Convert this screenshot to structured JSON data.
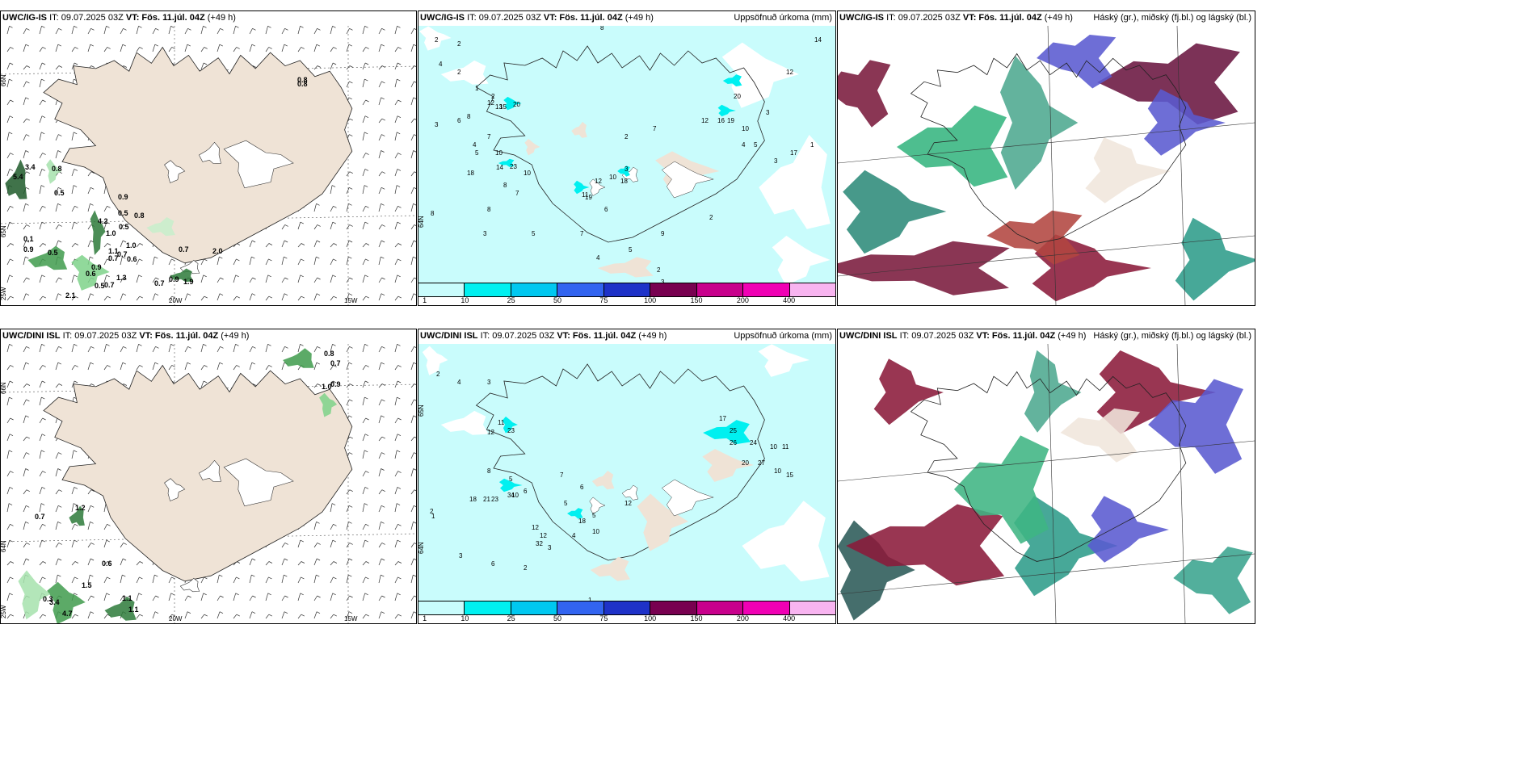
{
  "panels": [
    {
      "id": "p1",
      "model": "UWC/IG-IS",
      "it": "IT: 09.07.2025 03Z",
      "vt_label": "VT:",
      "vt": "Fös. 11.júl. 04Z",
      "lead": "(+49 h)",
      "right_title": ""
    },
    {
      "id": "p2",
      "model": "UWC/IG-IS",
      "it": "IT: 09.07.2025 03Z",
      "vt_label": "VT:",
      "vt": "Fös. 11.júl. 04Z",
      "lead": "(+49 h)",
      "right_title": "Uppsöfnuð úrkoma (mm)"
    },
    {
      "id": "p3",
      "model": "UWC/IG-IS",
      "it": "IT: 09.07.2025 03Z",
      "vt_label": "VT:",
      "vt": "Fös. 11.júl. 04Z",
      "lead": "(+49 h)",
      "right_title": "Háský (gr.), miðský (fj.bl.) og lágský (bl.)"
    },
    {
      "id": "p4",
      "model": "UWC/DINI ISL",
      "it": "IT: 09.07.2025 03Z",
      "vt_label": "VT:",
      "vt": "Fös. 11.júl. 04Z",
      "lead": "(+49 h)",
      "right_title": ""
    },
    {
      "id": "p5",
      "model": "UWC/DINI ISL",
      "it": "IT: 09.07.2025 03Z",
      "vt_label": "VT:",
      "vt": "Fös. 11.júl. 04Z",
      "lead": "(+49 h)",
      "right_title": "Uppsöfnuð úrkoma (mm)"
    },
    {
      "id": "p6",
      "model": "UWC/DINI ISL",
      "it": "IT: 09.07.2025 03Z",
      "vt_label": "VT:",
      "vt": "Fös. 11.júl. 04Z",
      "lead": "(+49 h)",
      "right_title": "Háský (gr.), miðský (fj.bl.) og lágský (bl.)"
    }
  ],
  "colorbar": {
    "labels": [
      "1",
      "10",
      "25",
      "50",
      "75",
      "100",
      "150",
      "200",
      "400"
    ],
    "colors": [
      "#c9fcfc",
      "#00f0f0",
      "#00c8f0",
      "#3264f0",
      "#1e32c8",
      "#780050",
      "#c8008c",
      "#f000b4",
      "#f8b4f0"
    ]
  },
  "axis_labels": {
    "lat66": "66N",
    "lat65": "65N",
    "lat64": "64N",
    "lon25": "25W",
    "lon20": "20W",
    "lon15": "15W"
  },
  "p1_values": [
    "0.8",
    "0.8",
    "3.4",
    "5.4",
    "0.8",
    "0.5",
    "0.9",
    "0.5",
    "0.8",
    "4.2",
    "0.5",
    "1.0",
    "0.1",
    "0.9",
    "0.5",
    "1.0",
    "0.6",
    "0.7",
    "1.1",
    "0.7",
    "0.7",
    "0.9",
    "1.3",
    "2.0",
    "0.6",
    "2.1",
    "0.5",
    "0.7",
    "0.9",
    "0.7",
    "1.9"
  ],
  "p4_values": [
    "0.8",
    "0.7",
    "1.0",
    "0.9",
    "0.7",
    "1.2",
    "0.6",
    "1.5",
    "0.3",
    "3.4",
    "4.7",
    "1.1",
    "1.1"
  ],
  "p2_values": [
    "2",
    "2",
    "4",
    "2",
    "1",
    "2",
    "12",
    "13",
    "15",
    "20",
    "8",
    "6",
    "3",
    "7",
    "4",
    "10",
    "5",
    "8",
    "20",
    "16",
    "19",
    "12",
    "7",
    "2",
    "18",
    "14",
    "23",
    "10",
    "7",
    "11",
    "12",
    "19",
    "10",
    "18",
    "3",
    "9",
    "6",
    "8",
    "8",
    "3",
    "5",
    "7",
    "4",
    "5",
    "2",
    "3",
    "2",
    "3",
    "5",
    "4",
    "3",
    "1",
    "10",
    "17",
    "12",
    "14",
    "8"
  ],
  "p5_values": [
    "2",
    "4",
    "3",
    "11",
    "12",
    "23",
    "8",
    "5",
    "6",
    "10",
    "18",
    "21",
    "23",
    "34",
    "12",
    "12",
    "32",
    "10",
    "5",
    "18",
    "12",
    "17",
    "25",
    "26",
    "24",
    "20",
    "27",
    "10",
    "11",
    "10",
    "15",
    "5",
    "6",
    "4",
    "7",
    "2",
    "1",
    "3",
    "6",
    "2",
    "3",
    "1"
  ]
}
